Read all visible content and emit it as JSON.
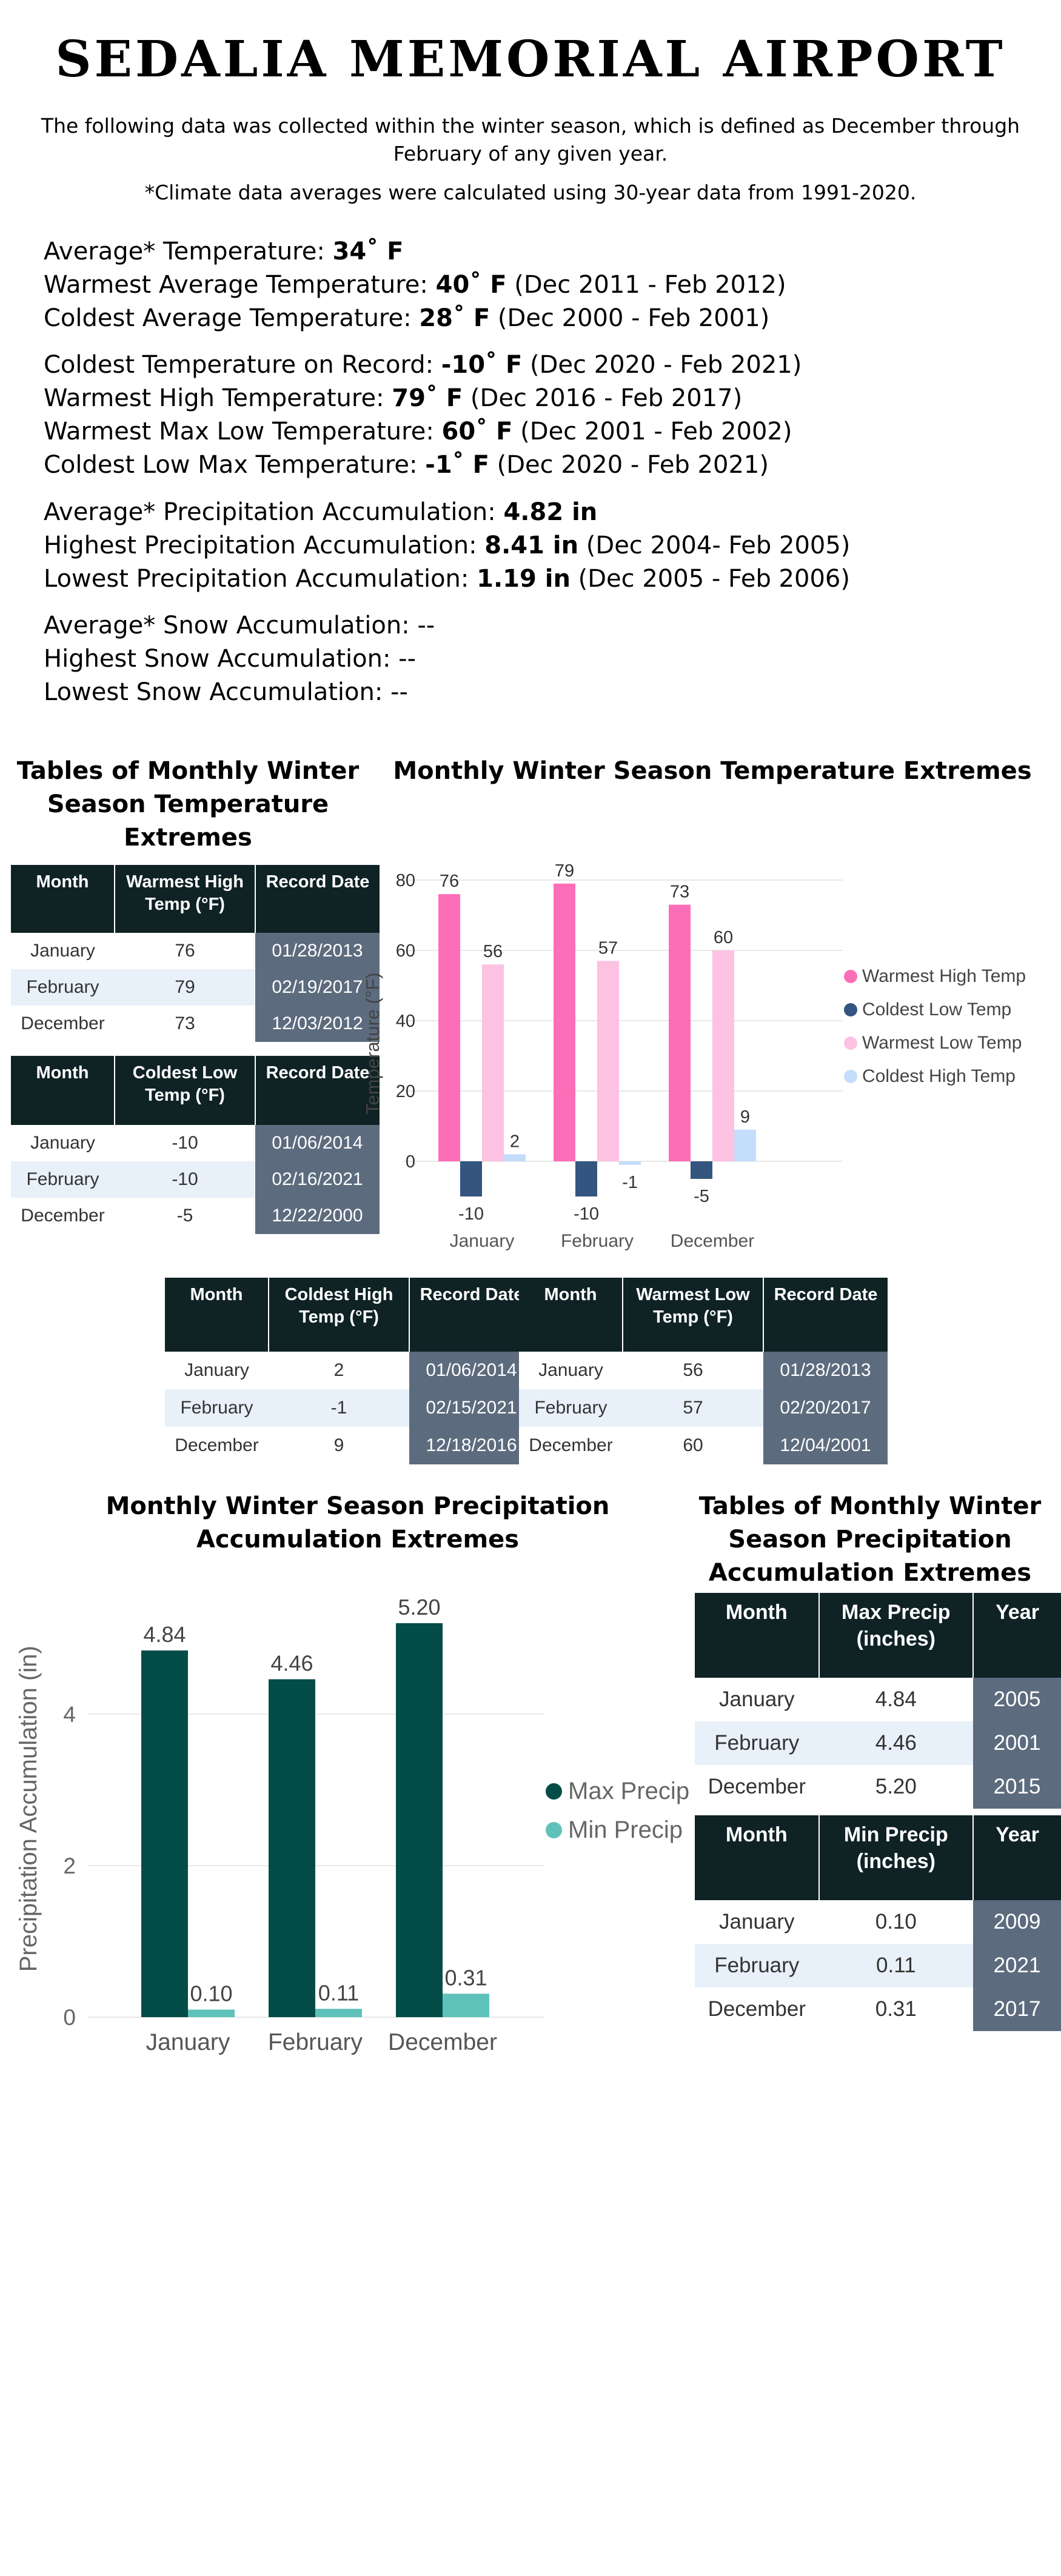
{
  "header": {
    "title": "SEDALIA MEMORIAL AIRPORT",
    "intro_line1": "The following data was collected within the winter season, which is defined as December through",
    "intro_line2": "February of any given year.",
    "note": "*Climate data averages were calculated using 30-year data from 1991-2020."
  },
  "stats": {
    "avg_temp": {
      "label": "Average* Temperature: ",
      "value": "34˚ F",
      "period": ""
    },
    "warm_avg_temp": {
      "label": "Warmest Average Temperature: ",
      "value": "40˚ F",
      "period": " (Dec 2011 - Feb 2012)"
    },
    "cold_avg_temp": {
      "label": "Coldest Average Temperature: ",
      "value": "28˚ F",
      "period": " (Dec 2000 - Feb 2001)"
    },
    "cold_record": {
      "label": "Coldest Temperature on Record: ",
      "value": "-10˚ F",
      "period": " (Dec 2020 - Feb 2021)"
    },
    "warm_high": {
      "label": "Warmest High Temperature: ",
      "value": "79˚ F",
      "period": " (Dec 2016 - Feb 2017)"
    },
    "warm_max_low": {
      "label": "Warmest Max Low Temperature: ",
      "value": "60˚ F",
      "period": " (Dec 2001 - Feb 2002)"
    },
    "cold_low_max": {
      "label": "Coldest Low Max Temperature: ",
      "value": "-1˚ F",
      "period": " (Dec 2020 - Feb 2021)"
    },
    "avg_precip": {
      "label": "Average* Precipitation Accumulation: ",
      "value": "4.82 in",
      "period": ""
    },
    "high_precip": {
      "label": "Highest Precipitation Accumulation:  ",
      "value": "8.41 in",
      "period": " (Dec 2004- Feb 2005)"
    },
    "low_precip": {
      "label": "Lowest  Precipitation Accumulation:  ",
      "value": "1.19 in",
      "period": " (Dec 2005 - Feb 2006)"
    },
    "avg_snow": {
      "label": "Average* Snow Accumulation: --",
      "value": "",
      "period": ""
    },
    "high_snow": {
      "label": "Highest Snow Accumulation: --",
      "value": "",
      "period": ""
    },
    "low_snow": {
      "label": "Lowest Snow Accumulation: --",
      "value": "",
      "period": ""
    }
  },
  "temp_tables": {
    "title_line1": "Tables of Monthly Winter",
    "title_line2": "Season Temperature",
    "title_line3": "Extremes",
    "warmest_high": {
      "headers": [
        "Month",
        "Warmest High Temp (°F)",
        "Record Date"
      ],
      "rows": [
        [
          "January",
          "76",
          "01/28/2013"
        ],
        [
          "February",
          "79",
          "02/19/2017"
        ],
        [
          "December",
          "73",
          "12/03/2012"
        ]
      ]
    },
    "coldest_low": {
      "headers": [
        "Month",
        "Coldest Low Temp (°F)",
        "Record Date"
      ],
      "rows": [
        [
          "January",
          "-10",
          "01/06/2014"
        ],
        [
          "February",
          "-10",
          "02/16/2021"
        ],
        [
          "December",
          "-5",
          "12/22/2000"
        ]
      ]
    },
    "coldest_high": {
      "headers": [
        "Month",
        "Coldest High Temp (°F)",
        "Record Date"
      ],
      "rows": [
        [
          "January",
          "2",
          "01/06/2014"
        ],
        [
          "February",
          "-1",
          "02/15/2021"
        ],
        [
          "December",
          "9",
          "12/18/2016"
        ]
      ]
    },
    "warmest_low": {
      "headers": [
        "Month",
        "Warmest Low Temp (°F)",
        "Record Date"
      ],
      "rows": [
        [
          "January",
          "56",
          "01/28/2013"
        ],
        [
          "February",
          "57",
          "02/20/2017"
        ],
        [
          "December",
          "60",
          "12/04/2001"
        ]
      ]
    }
  },
  "precip_tables": {
    "title_line1": "Tables of Monthly Winter",
    "title_line2": "Season Precipitation",
    "title_line3": "Accumulation Extremes",
    "max_precip": {
      "headers": [
        "Month",
        "Max Precip (inches)",
        "Year"
      ],
      "rows": [
        [
          "January",
          "4.84",
          "2005"
        ],
        [
          "February",
          "4.46",
          "2001"
        ],
        [
          "December",
          "5.20",
          "2015"
        ]
      ]
    },
    "min_precip": {
      "headers": [
        "Month",
        "Min Precip (inches)",
        "Year"
      ],
      "rows": [
        [
          "January",
          "0.10",
          "2009"
        ],
        [
          "February",
          "0.11",
          "2021"
        ],
        [
          "December",
          "0.31",
          "2017"
        ]
      ]
    }
  },
  "chart_data": [
    {
      "type": "bar",
      "title": "Monthly Winter Season Temperature Extremes",
      "xlabel": "",
      "ylabel": "Temperature (°F)",
      "categories": [
        "January",
        "February",
        "December"
      ],
      "ylim": [
        -15,
        82
      ],
      "yticks": [
        0,
        20,
        40,
        60,
        80
      ],
      "grid": true,
      "legend_position": "right",
      "series": [
        {
          "name": "Warmest High Temp",
          "values": [
            76,
            79,
            73
          ],
          "color": "#fd6eb8"
        },
        {
          "name": "Coldest Low Temp",
          "values": [
            -10,
            -10,
            -5
          ],
          "color": "#34557f"
        },
        {
          "name": "Warmest Low Temp",
          "values": [
            56,
            57,
            60
          ],
          "color": "#fdc2e2"
        },
        {
          "name": "Coldest High Temp",
          "values": [
            2,
            -1,
            9
          ],
          "color": "#c3ddfa"
        }
      ]
    },
    {
      "type": "bar",
      "title": "Monthly Winter Season Precipitation Accumulation Extremes",
      "title_line1": "Monthly Winter Season Precipitation",
      "title_line2": "Accumulation Extremes",
      "xlabel": "",
      "ylabel": "Precipitation Accumulation (in)",
      "categories": [
        "January",
        "February",
        "December"
      ],
      "ylim": [
        0,
        5.5
      ],
      "yticks": [
        0,
        2,
        4
      ],
      "grid": true,
      "legend_position": "right",
      "series": [
        {
          "name": "Max Precip",
          "values": [
            4.84,
            4.46,
            5.2
          ],
          "labels": [
            "4.84",
            "4.46",
            "5.20"
          ],
          "color": "#044c48"
        },
        {
          "name": "Min Precip",
          "values": [
            0.1,
            0.11,
            0.31
          ],
          "labels": [
            "0.10",
            "0.11",
            "0.31"
          ],
          "color": "#5ec2ba"
        }
      ]
    }
  ]
}
